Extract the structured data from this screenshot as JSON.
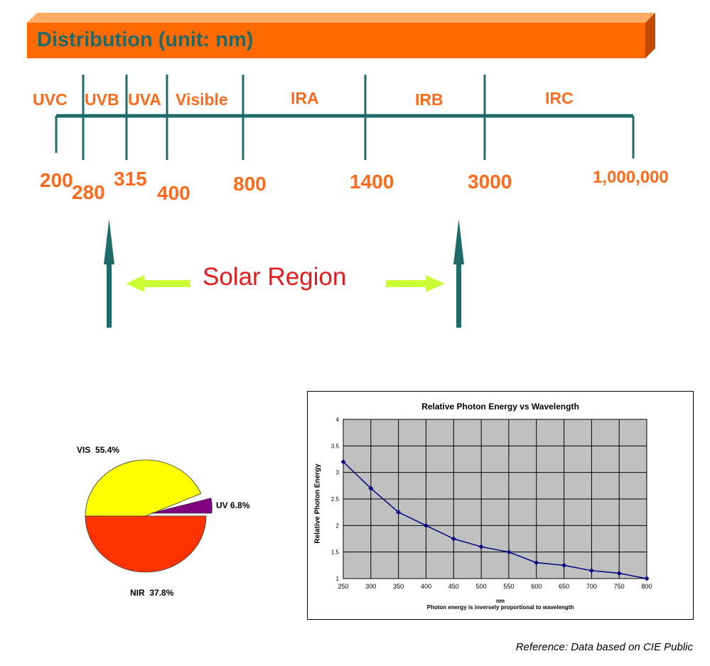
{
  "banner": {
    "title": "Distribution (unit: nm)",
    "color": "#ff6a00"
  },
  "bands": [
    "UVC",
    "UVB",
    "UVA",
    "Visible",
    "IRA",
    "IRB",
    "IRC"
  ],
  "boundaries": [
    "200",
    "280",
    "315",
    "400",
    "800",
    "1400",
    "3000",
    "1,000,000"
  ],
  "solar_region": {
    "label": "Solar Region"
  },
  "pie": {
    "slices": [
      {
        "label": "VIS",
        "value": "55.4%",
        "color": "#ffff00"
      },
      {
        "label": "UV",
        "value": "6.8%",
        "color": "#800080"
      },
      {
        "label": "NIR",
        "value": "37.8%",
        "color": "#ff3300"
      }
    ]
  },
  "chart_data": {
    "type": "line",
    "title": "Relative Photon Energy vs Wavelength",
    "xlabel": "nm",
    "ylabel": "Relative Photon Energy",
    "caption": "Photon energy is inversely proportional to wavelength",
    "x": [
      250,
      300,
      350,
      400,
      450,
      500,
      550,
      600,
      650,
      700,
      750,
      800
    ],
    "series": [
      {
        "values": [
          3.2,
          2.7,
          2.25,
          2.0,
          1.75,
          1.6,
          1.5,
          1.3,
          1.25,
          1.15,
          1.1,
          1.0
        ]
      }
    ],
    "xlim": [
      250,
      800
    ],
    "ylim": [
      1,
      4
    ],
    "yticks": [
      "1",
      "1.5",
      "2",
      "2.5",
      "3",
      "3.5",
      "4"
    ],
    "grid": true,
    "line_color": "#000080",
    "plot_bg": "#c0c0c0"
  },
  "reference": "Reference: Data based on CIE Public"
}
